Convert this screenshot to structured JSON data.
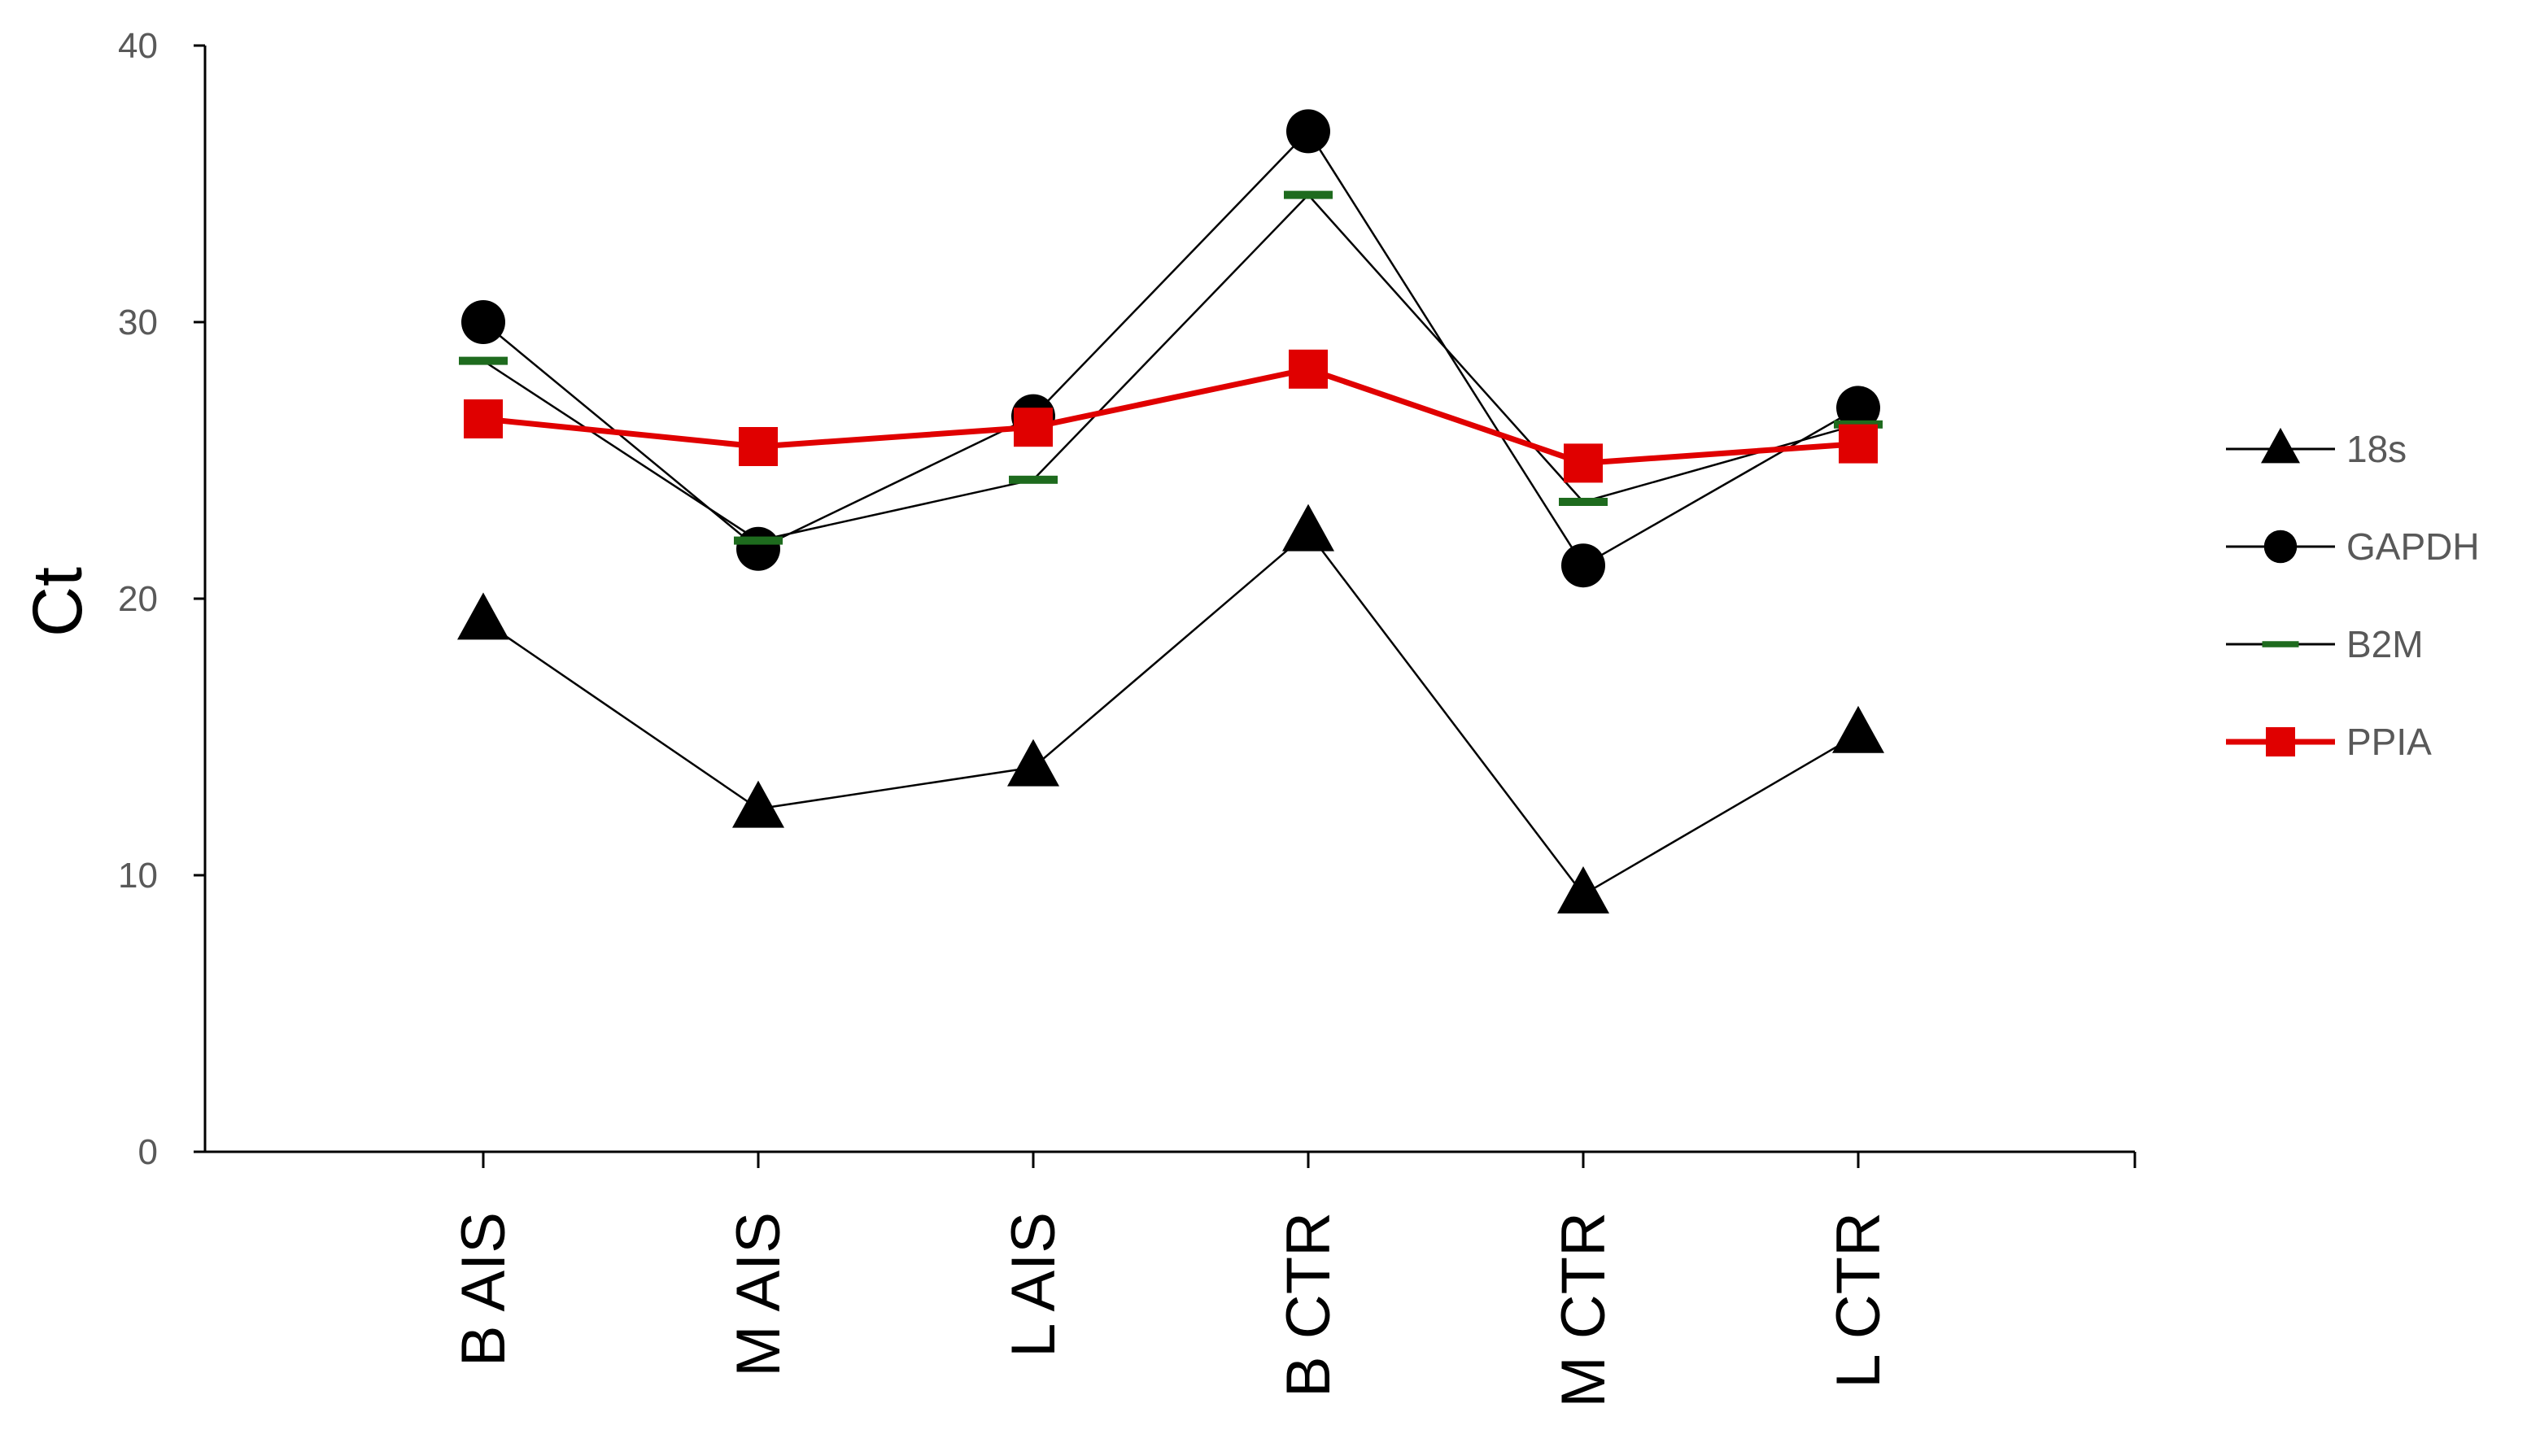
{
  "chart_data": {
    "type": "line",
    "title": "",
    "xlabel": "",
    "ylabel": "Ct",
    "ylim": [
      0,
      40
    ],
    "yticks": [
      0,
      10,
      20,
      30,
      40
    ],
    "grid": false,
    "legend_position": "right",
    "categories": [
      "B AIS",
      "M AIS",
      "L AIS",
      "B CTR",
      "M CTR",
      "L CTR"
    ],
    "series": [
      {
        "name": "18s",
        "marker": "triangle",
        "color": "#000000",
        "values": [
          19.2,
          12.4,
          13.9,
          22.4,
          9.3,
          15.1
        ]
      },
      {
        "name": "GAPDH",
        "marker": "circle",
        "color": "#000000",
        "values": [
          30.0,
          21.8,
          26.6,
          36.9,
          21.2,
          26.9
        ]
      },
      {
        "name": "B2M",
        "marker": "dash",
        "color": "#000000",
        "marker_color": "#1e6b1e",
        "values": [
          28.6,
          22.1,
          24.3,
          34.6,
          23.5,
          26.3
        ]
      },
      {
        "name": "PPIA",
        "marker": "square",
        "color": "#e00000",
        "values": [
          26.5,
          25.5,
          26.2,
          28.3,
          24.9,
          25.6
        ]
      }
    ]
  }
}
